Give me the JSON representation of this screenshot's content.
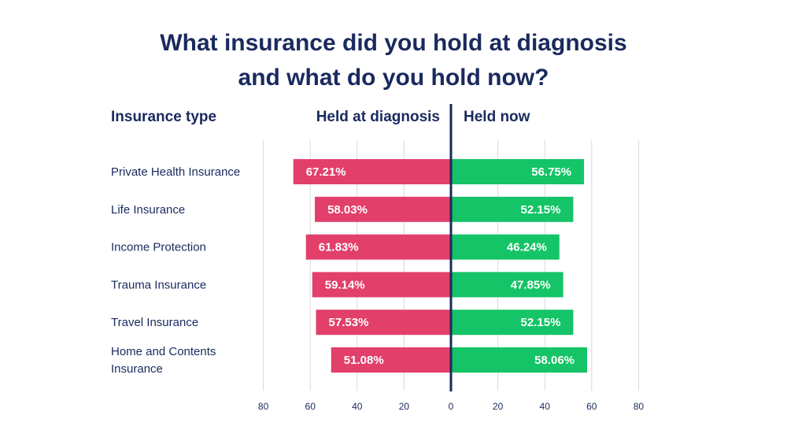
{
  "chart_data": {
    "type": "bar",
    "orientation": "horizontal-diverging",
    "title_lines": [
      "What insurance did you hold at diagnosis",
      "and what do you hold now?"
    ],
    "category_header": "Insurance type",
    "categories": [
      [
        "Private Health Insurance"
      ],
      [
        "Life Insurance"
      ],
      [
        "Income Protection"
      ],
      [
        "Trauma Insurance"
      ],
      [
        "Travel Insurance"
      ],
      [
        "Home and Contents",
        "Insurance"
      ]
    ],
    "series": [
      {
        "name": "Held at diagnosis",
        "side": "left",
        "color": "#e23f6b",
        "values": [
          67.21,
          58.03,
          61.83,
          59.14,
          57.53,
          51.08
        ],
        "labels": [
          "67.21%",
          "58.03%",
          "61.83%",
          "59.14%",
          "57.53%",
          "51.08%"
        ]
      },
      {
        "name": "Held now",
        "side": "right",
        "color": "#14c466",
        "values": [
          56.75,
          52.15,
          46.24,
          47.85,
          52.15,
          58.06
        ],
        "labels": [
          "56.75%",
          "52.15%",
          "46.24%",
          "47.85%",
          "52.15%",
          "58.06%"
        ]
      }
    ],
    "xlim": [
      0,
      80
    ],
    "x_ticks": [
      80,
      60,
      40,
      20,
      0,
      20,
      40,
      60,
      80
    ],
    "grid": true,
    "center_line_color": "#1a2a5e"
  }
}
